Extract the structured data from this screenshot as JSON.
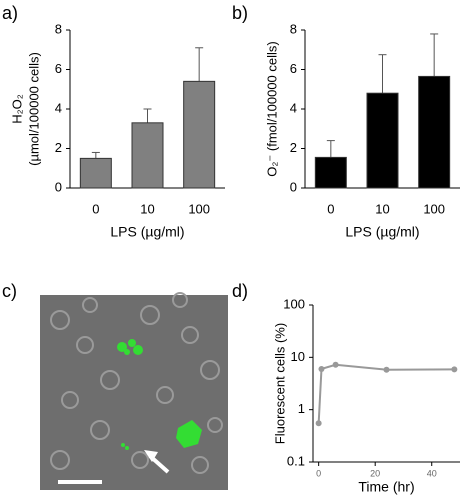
{
  "chart_data": [
    {
      "type": "bar",
      "panel_label": "a)",
      "ylabel": [
        "H₂O₂",
        "(µmol/100000 cells)"
      ],
      "xlabel": "LPS (µg/ml)",
      "categories": [
        "0",
        "10",
        "100"
      ],
      "values": [
        1.5,
        3.3,
        5.4
      ],
      "errors": [
        0.3,
        0.7,
        1.7
      ],
      "color": "#808080",
      "ylim": [
        0,
        8
      ],
      "yticks": [
        0,
        2,
        4,
        6,
        8
      ]
    },
    {
      "type": "bar",
      "panel_label": "b)",
      "ylabel": [
        "O₂⁻ (fmol/100000 cells)"
      ],
      "xlabel": "LPS (µg/ml)",
      "categories": [
        "0",
        "10",
        "100"
      ],
      "values": [
        1.55,
        4.8,
        5.65
      ],
      "errors": [
        0.85,
        1.95,
        2.15
      ],
      "color": "#000000",
      "ylim": [
        0,
        8
      ],
      "yticks": [
        0,
        2,
        4,
        6,
        8
      ]
    },
    {
      "type": "image",
      "panel_label": "c)"
    },
    {
      "type": "line",
      "panel_label": "d)",
      "ylabel": [
        "Fluorescent cells (%)"
      ],
      "xlabel": "Time (hr)",
      "x": [
        0,
        1,
        6,
        24,
        48
      ],
      "values": [
        0.55,
        6,
        7.2,
        5.8,
        5.9
      ],
      "color": "#999999",
      "xlim": [
        -2,
        50
      ],
      "xticks": [
        0,
        20,
        40
      ],
      "ylim": [
        0.1,
        100
      ],
      "yticks": [
        0.1,
        1,
        10,
        100
      ],
      "log_y": true
    }
  ]
}
